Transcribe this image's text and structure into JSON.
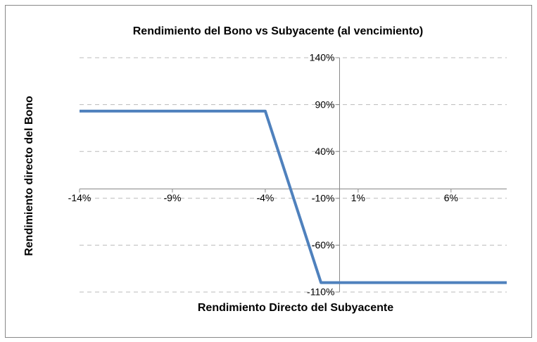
{
  "chart_data": {
    "type": "line",
    "title": "Rendimiento del Bono vs Subyacente (al vencimiento)",
    "x_label": "Rendimiento Directo del Subyacente",
    "y_label": "Rendimiento directo del Bono",
    "x": [
      -14,
      -4,
      -1,
      9
    ],
    "series": [
      {
        "name": "Rendimiento del Bono",
        "color": "#4f81bd",
        "values": [
          83,
          83,
          -100,
          -100
        ]
      }
    ],
    "xlim": [
      -14,
      9
    ],
    "xticks": [
      {
        "value": -14,
        "label": "-14%"
      },
      {
        "value": -9,
        "label": "-9%"
      },
      {
        "value": -4,
        "label": "-4%"
      },
      {
        "value": 1,
        "label": "1%"
      },
      {
        "value": 6,
        "label": "6%"
      }
    ],
    "ylim": [
      -110,
      140
    ],
    "yticks": [
      {
        "value": 140,
        "label": "140%"
      },
      {
        "value": 90,
        "label": "90%"
      },
      {
        "value": 40,
        "label": "40%"
      },
      {
        "value": -10,
        "label": "-10%"
      },
      {
        "value": -60,
        "label": "-60%"
      },
      {
        "value": -110,
        "label": "-110%"
      }
    ],
    "grid": true
  }
}
